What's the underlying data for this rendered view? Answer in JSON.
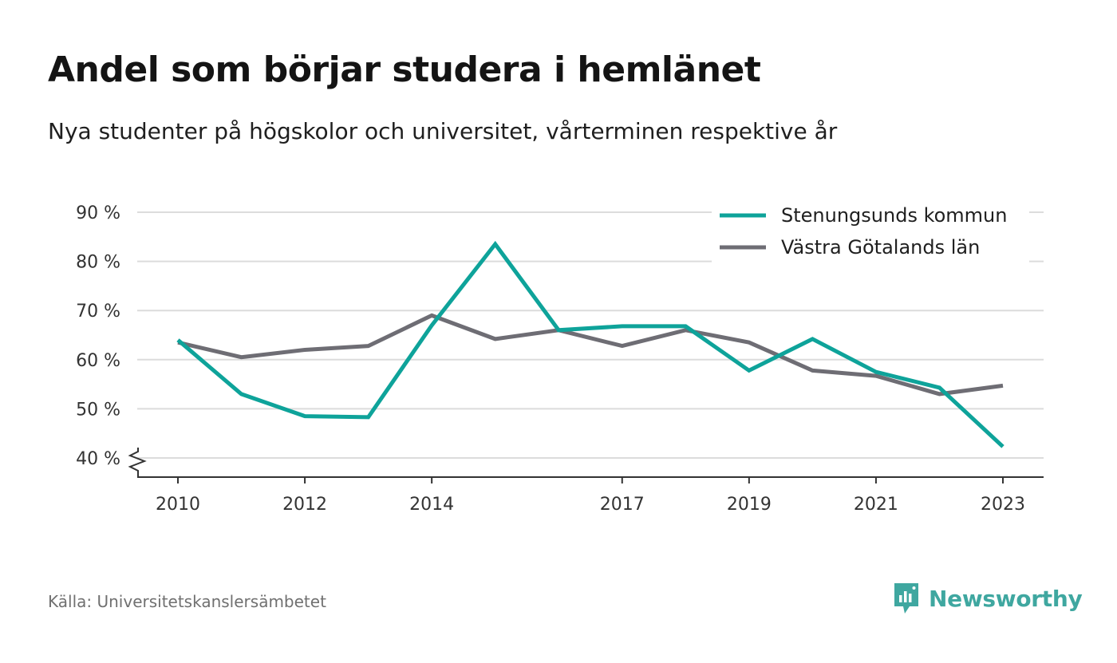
{
  "header": {
    "title": "Andel som börjar studera i hemlänet",
    "subtitle": "Nya studenter på högskolor och universitet, vårterminen respektive år"
  },
  "footer": {
    "source": "Källa: Universitetskanslersämbetet",
    "brand": "Newsworthy",
    "brand_icon": "newsworthy-logo-icon",
    "brand_color": "#3fa7a0"
  },
  "chart_data": {
    "type": "line",
    "title": "Andel som börjar studera i hemlänet",
    "subtitle": "Nya studenter på högskolor och universitet, vårterminen respektive år",
    "x": [
      2010,
      2011,
      2012,
      2013,
      2014,
      2015,
      2016,
      2017,
      2018,
      2019,
      2020,
      2021,
      2022,
      2023
    ],
    "x_ticks": [
      "2010",
      "2012",
      "2014",
      "2017",
      "2019",
      "2021",
      "2023"
    ],
    "y_ticks": [
      "40 %",
      "50 %",
      "60 %",
      "70 %",
      "80 %",
      "90 %"
    ],
    "ylim": [
      40,
      90
    ],
    "y_axis_break": true,
    "grid": true,
    "legend_position": "top-right",
    "series": [
      {
        "name": "Stenungsunds kommun",
        "color": "#0ea39a",
        "values": [
          64,
          53,
          48.5,
          48.3,
          67,
          83.5,
          66,
          66.8,
          66.8,
          57.8,
          64.2,
          57.5,
          54.3,
          42.3
        ]
      },
      {
        "name": "Västra Götalands län",
        "color": "#6e6d74",
        "values": [
          63.5,
          60.5,
          62,
          62.8,
          69,
          64.2,
          66,
          62.8,
          66,
          63.5,
          57.8,
          56.7,
          53,
          54.7
        ]
      }
    ]
  }
}
